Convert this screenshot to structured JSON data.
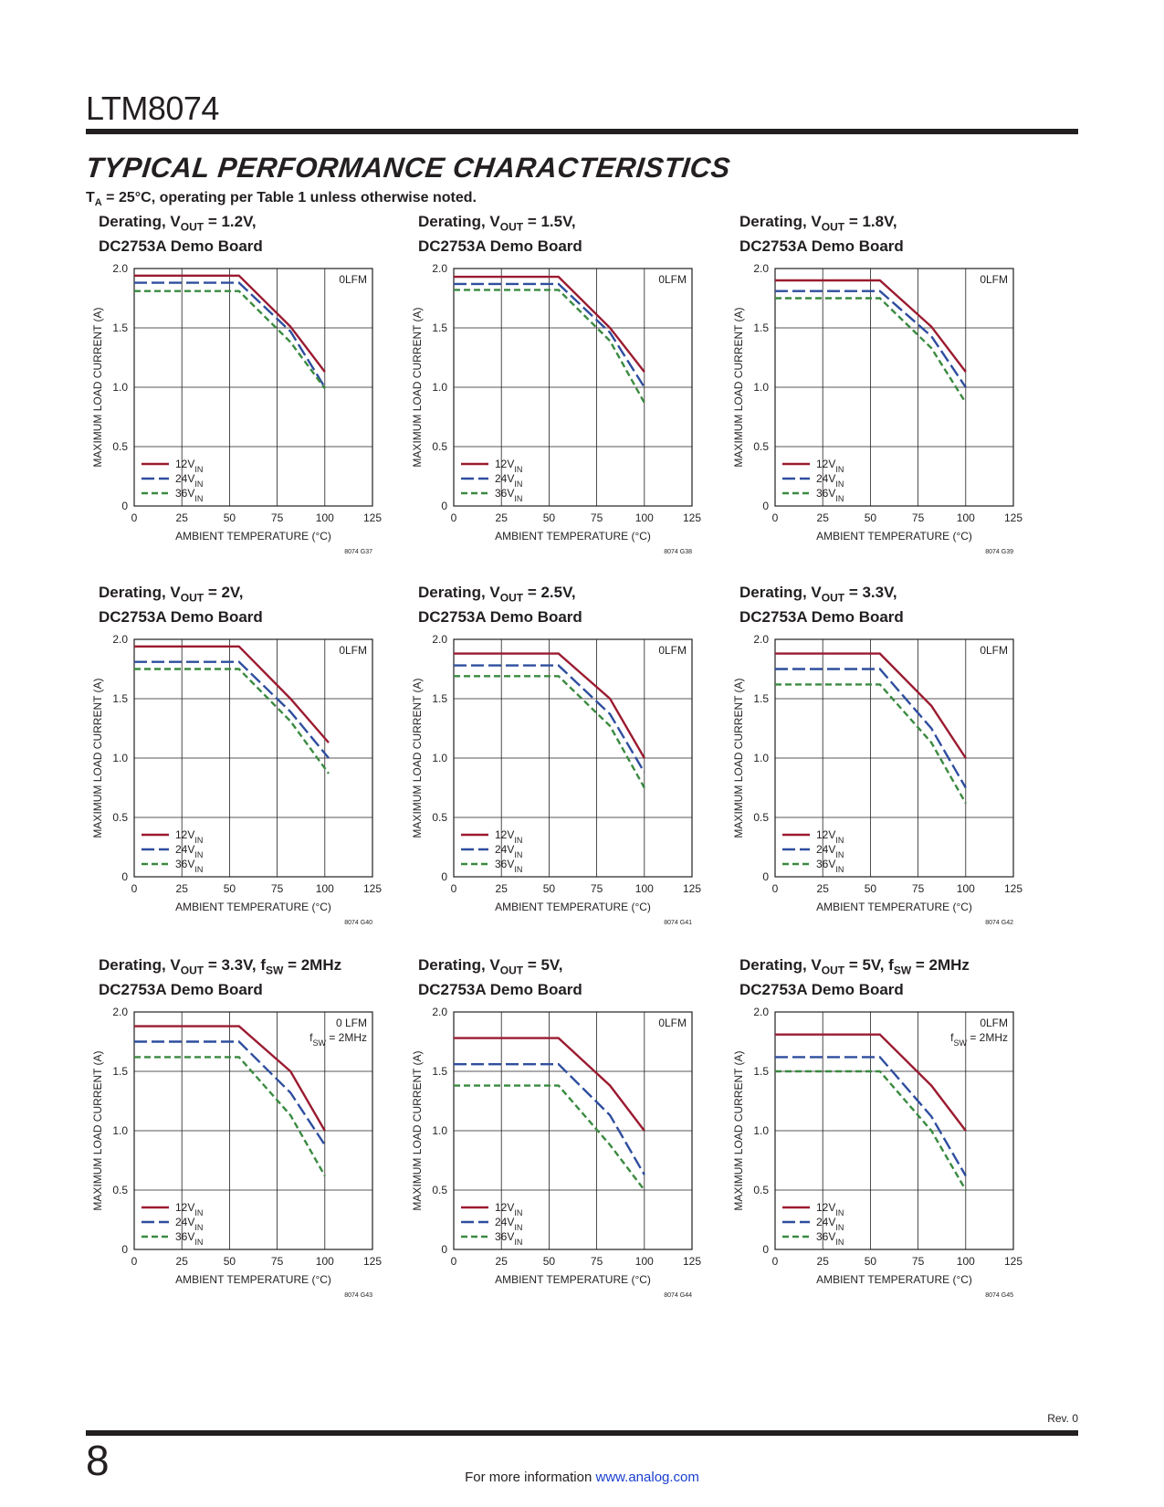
{
  "header": {
    "part_number": "LTM8074",
    "section_title": "TYPICAL PERFORMANCE CHARACTERISTICS",
    "subtitle_prefix": "T",
    "subtitle_sub": "A",
    "subtitle_rest": " = 25°C, operating per Table 1 unless otherwise noted."
  },
  "colors": {
    "v12": "#9b1b30",
    "v24": "#2e4e9e",
    "v36": "#3a8a40"
  },
  "footer": {
    "revision": "Rev. 0",
    "page_number": "8",
    "info_text": "For more information ",
    "link_text": "www.analog.com"
  },
  "chart_data": [
    {
      "type": "line",
      "title_line1": "Derating, V|OUT| = 1.2V,",
      "title_line2": "DC2753A Demo Board",
      "ylabel": "MAXIMUM LOAD CURRENT (A)",
      "xlabel": "AMBIENT TEMPERATURE (°C)",
      "xlim": [
        0,
        125
      ],
      "ylim": [
        0,
        2.0
      ],
      "xticks": [
        "0",
        "25",
        "50",
        "75",
        "100",
        "125"
      ],
      "yticks": [
        "0",
        "0.5",
        "1.0",
        "1.5",
        "2.0"
      ],
      "grid": true,
      "legend": "bottom-left",
      "annotation": [
        "0LFM"
      ],
      "figure_id": "8074 G37",
      "series": [
        {
          "name": "12V|IN|",
          "style": "solid",
          "x": [
            0,
            55,
            82,
            100
          ],
          "y": [
            1.94,
            1.94,
            1.51,
            1.13
          ]
        },
        {
          "name": "24V|IN|",
          "style": "longdash",
          "x": [
            0,
            55,
            82,
            100
          ],
          "y": [
            1.88,
            1.88,
            1.47,
            1.0
          ]
        },
        {
          "name": "36V|IN|",
          "style": "dash",
          "x": [
            0,
            55,
            82,
            100
          ],
          "y": [
            1.81,
            1.81,
            1.38,
            0.99
          ]
        }
      ]
    },
    {
      "type": "line",
      "title_line1": "Derating, V|OUT| = 1.5V,",
      "title_line2": "DC2753A Demo Board",
      "ylabel": "MAXIMUM LOAD CURRENT (A)",
      "xlabel": "AMBIENT TEMPERATURE (°C)",
      "xlim": [
        0,
        125
      ],
      "ylim": [
        0,
        2.0
      ],
      "xticks": [
        "0",
        "25",
        "50",
        "75",
        "100",
        "125"
      ],
      "yticks": [
        "0",
        "0.5",
        "1.0",
        "1.5",
        "2.0"
      ],
      "grid": true,
      "legend": "bottom-left",
      "annotation": [
        "0LFM"
      ],
      "figure_id": "8074 G38",
      "series": [
        {
          "name": "12V|IN|",
          "style": "solid",
          "x": [
            0,
            55,
            82,
            100
          ],
          "y": [
            1.93,
            1.93,
            1.5,
            1.13
          ]
        },
        {
          "name": "24V|IN|",
          "style": "longdash",
          "x": [
            0,
            55,
            82,
            100
          ],
          "y": [
            1.87,
            1.87,
            1.46,
            1.0
          ]
        },
        {
          "name": "36V|IN|",
          "style": "dash",
          "x": [
            0,
            55,
            82,
            100
          ],
          "y": [
            1.82,
            1.82,
            1.39,
            0.87
          ]
        }
      ]
    },
    {
      "type": "line",
      "title_line1": "Derating, V|OUT| = 1.8V,",
      "title_line2": "DC2753A Demo Board",
      "ylabel": "MAXIMUM LOAD CURRENT (A)",
      "xlabel": "AMBIENT TEMPERATURE (°C)",
      "xlim": [
        0,
        125
      ],
      "ylim": [
        0,
        2.0
      ],
      "xticks": [
        "0",
        "25",
        "50",
        "75",
        "100",
        "125"
      ],
      "yticks": [
        "0",
        "0.5",
        "1.0",
        "1.5",
        "2.0"
      ],
      "grid": true,
      "legend": "bottom-left",
      "annotation": [
        "0LFM"
      ],
      "figure_id": "8074 G39",
      "series": [
        {
          "name": "12V|IN|",
          "style": "solid",
          "x": [
            0,
            55,
            82,
            100
          ],
          "y": [
            1.9,
            1.9,
            1.51,
            1.13
          ]
        },
        {
          "name": "24V|IN|",
          "style": "longdash",
          "x": [
            0,
            55,
            82,
            100
          ],
          "y": [
            1.81,
            1.81,
            1.43,
            1.0
          ]
        },
        {
          "name": "36V|IN|",
          "style": "dash",
          "x": [
            0,
            55,
            82,
            100
          ],
          "y": [
            1.75,
            1.75,
            1.33,
            0.87
          ]
        }
      ]
    },
    {
      "type": "line",
      "title_line1": "Derating, V|OUT| = 2V,",
      "title_line2": "DC2753A Demo Board",
      "ylabel": "MAXIMUM LOAD CURRENT (A)",
      "xlabel": "AMBIENT TEMPERATURE (°C)",
      "xlim": [
        0,
        125
      ],
      "ylim": [
        0,
        2.0
      ],
      "xticks": [
        "0",
        "25",
        "50",
        "75",
        "100",
        "125"
      ],
      "yticks": [
        "0",
        "0.5",
        "1.0",
        "1.5",
        "2.0"
      ],
      "grid": true,
      "legend": "bottom-left",
      "annotation": [
        "0LFM"
      ],
      "figure_id": "8074 G40",
      "series": [
        {
          "name": "12V|IN|",
          "style": "solid",
          "x": [
            0,
            55,
            82,
            102
          ],
          "y": [
            1.94,
            1.94,
            1.5,
            1.13
          ]
        },
        {
          "name": "24V|IN|",
          "style": "longdash",
          "x": [
            0,
            55,
            82,
            102
          ],
          "y": [
            1.81,
            1.81,
            1.39,
            1.0
          ]
        },
        {
          "name": "36V|IN|",
          "style": "dash",
          "x": [
            0,
            55,
            82,
            102
          ],
          "y": [
            1.75,
            1.75,
            1.31,
            0.87
          ]
        }
      ]
    },
    {
      "type": "line",
      "title_line1": "Derating, V|OUT| = 2.5V,",
      "title_line2": "DC2753A Demo Board",
      "ylabel": "MAXIMUM LOAD CURRENT (A)",
      "xlabel": "AMBIENT TEMPERATURE (°C)",
      "xlim": [
        0,
        125
      ],
      "ylim": [
        0,
        2.0
      ],
      "xticks": [
        "0",
        "25",
        "50",
        "75",
        "100",
        "125"
      ],
      "yticks": [
        "0",
        "0.5",
        "1.0",
        "1.5",
        "2.0"
      ],
      "grid": true,
      "legend": "bottom-left",
      "annotation": [
        "0LFM"
      ],
      "figure_id": "8074 G41",
      "series": [
        {
          "name": "12V|IN|",
          "style": "solid",
          "x": [
            0,
            55,
            82,
            100
          ],
          "y": [
            1.88,
            1.88,
            1.5,
            1.0
          ]
        },
        {
          "name": "24V|IN|",
          "style": "longdash",
          "x": [
            0,
            55,
            82,
            100
          ],
          "y": [
            1.78,
            1.78,
            1.37,
            0.88
          ]
        },
        {
          "name": "36V|IN|",
          "style": "dash",
          "x": [
            0,
            55,
            82,
            100
          ],
          "y": [
            1.69,
            1.69,
            1.27,
            0.75
          ]
        }
      ]
    },
    {
      "type": "line",
      "title_line1": "Derating, V|OUT| = 3.3V,",
      "title_line2": "DC2753A Demo Board",
      "ylabel": "MAXIMUM LOAD CURRENT (A)",
      "xlabel": "AMBIENT TEMPERATURE (°C)",
      "xlim": [
        0,
        125
      ],
      "ylim": [
        0,
        2.0
      ],
      "xticks": [
        "0",
        "25",
        "50",
        "75",
        "100",
        "125"
      ],
      "yticks": [
        "0",
        "0.5",
        "1.0",
        "1.5",
        "2.0"
      ],
      "grid": true,
      "legend": "bottom-left",
      "annotation": [
        "0LFM"
      ],
      "figure_id": "8074 G42",
      "series": [
        {
          "name": "12V|IN|",
          "style": "solid",
          "x": [
            0,
            55,
            82,
            100
          ],
          "y": [
            1.88,
            1.88,
            1.44,
            1.0
          ]
        },
        {
          "name": "24V|IN|",
          "style": "longdash",
          "x": [
            0,
            55,
            82,
            100
          ],
          "y": [
            1.75,
            1.75,
            1.25,
            0.75
          ]
        },
        {
          "name": "36V|IN|",
          "style": "dash",
          "x": [
            0,
            55,
            82,
            100
          ],
          "y": [
            1.62,
            1.62,
            1.13,
            0.62
          ]
        }
      ]
    },
    {
      "type": "line",
      "title_line1": "Derating, V|OUT| = 3.3V, f|SW| = 2MHz",
      "title_line2": "DC2753A Demo Board",
      "ylabel": "MAXIMUM LOAD CURRENT (A)",
      "xlabel": "AMBIENT TEMPERATURE (°C)",
      "xlim": [
        0,
        125
      ],
      "ylim": [
        0,
        2.0
      ],
      "xticks": [
        "0",
        "25",
        "50",
        "75",
        "100",
        "125"
      ],
      "yticks": [
        "0",
        "0.5",
        "1.0",
        "1.5",
        "2.0"
      ],
      "grid": true,
      "legend": "bottom-left",
      "annotation": [
        "0 LFM",
        "f|SW| = 2MHz"
      ],
      "figure_id": "8074 G43",
      "series": [
        {
          "name": "12V|IN|",
          "style": "solid",
          "x": [
            0,
            55,
            82,
            100
          ],
          "y": [
            1.88,
            1.88,
            1.5,
            1.0
          ]
        },
        {
          "name": "24V|IN|",
          "style": "longdash",
          "x": [
            0,
            55,
            82,
            100
          ],
          "y": [
            1.75,
            1.75,
            1.32,
            0.88
          ]
        },
        {
          "name": "36V|IN|",
          "style": "dash",
          "x": [
            0,
            55,
            82,
            100
          ],
          "y": [
            1.62,
            1.62,
            1.13,
            0.62
          ]
        }
      ]
    },
    {
      "type": "line",
      "title_line1": "Derating, V|OUT| = 5V,",
      "title_line2": "DC2753A Demo Board",
      "ylabel": "MAXIMUM LOAD CURRENT (A)",
      "xlabel": "AMBIENT TEMPERATURE (°C)",
      "xlim": [
        0,
        125
      ],
      "ylim": [
        0,
        2.0
      ],
      "xticks": [
        "0",
        "25",
        "50",
        "75",
        "100",
        "125"
      ],
      "yticks": [
        "0",
        "0.5",
        "1.0",
        "1.5",
        "2.0"
      ],
      "grid": true,
      "legend": "bottom-left",
      "annotation": [
        "0LFM"
      ],
      "figure_id": "8074 G44",
      "series": [
        {
          "name": "12V|IN|",
          "style": "solid",
          "x": [
            0,
            55,
            82,
            100
          ],
          "y": [
            1.78,
            1.78,
            1.38,
            1.0
          ]
        },
        {
          "name": "24V|IN|",
          "style": "longdash",
          "x": [
            0,
            55,
            82,
            100
          ],
          "y": [
            1.56,
            1.56,
            1.13,
            0.63
          ]
        },
        {
          "name": "36V|IN|",
          "style": "dash",
          "x": [
            0,
            55,
            82,
            100
          ],
          "y": [
            1.38,
            1.38,
            0.88,
            0.5
          ]
        }
      ]
    },
    {
      "type": "line",
      "title_line1": "Derating, V|OUT| = 5V, f|SW| = 2MHz",
      "title_line2": "DC2753A Demo Board",
      "ylabel": "MAXIMUM LOAD CURRENT (A)",
      "xlabel": "AMBIENT TEMPERATURE (°C)",
      "xlim": [
        0,
        125
      ],
      "ylim": [
        0,
        2.0
      ],
      "xticks": [
        "0",
        "25",
        "50",
        "75",
        "100",
        "125"
      ],
      "yticks": [
        "0",
        "0.5",
        "1.0",
        "1.5",
        "2.0"
      ],
      "grid": true,
      "legend": "bottom-left",
      "annotation": [
        "0LFM",
        "f|SW| = 2MHz"
      ],
      "figure_id": "8074 G45",
      "series": [
        {
          "name": "12V|IN|",
          "style": "solid",
          "x": [
            0,
            55,
            82,
            100
          ],
          "y": [
            1.81,
            1.81,
            1.38,
            1.0
          ]
        },
        {
          "name": "24V|IN|",
          "style": "longdash",
          "x": [
            0,
            55,
            82,
            100
          ],
          "y": [
            1.62,
            1.62,
            1.12,
            0.62
          ]
        },
        {
          "name": "36V|IN|",
          "style": "dash",
          "x": [
            0,
            55,
            82,
            100
          ],
          "y": [
            1.5,
            1.5,
            1.0,
            0.5
          ]
        }
      ]
    }
  ]
}
